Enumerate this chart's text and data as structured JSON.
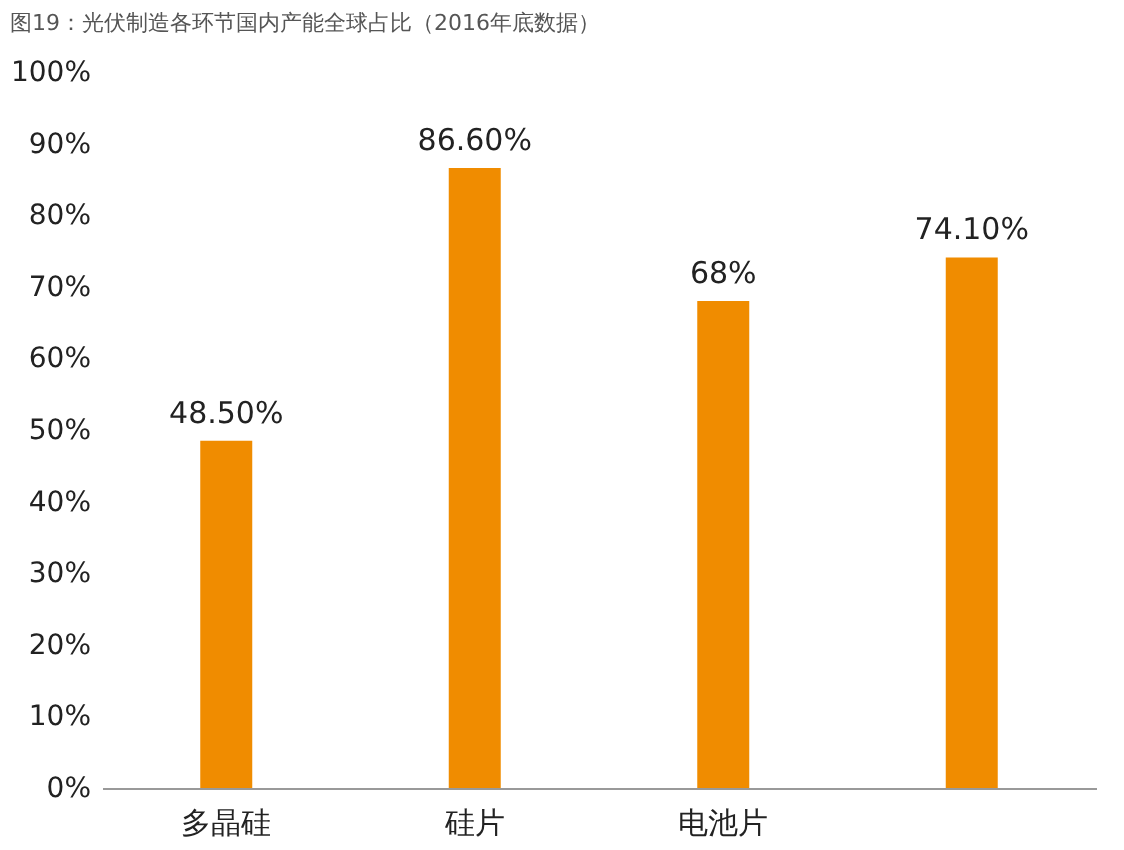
{
  "chart_data": {
    "type": "bar",
    "title": "图19：光伏制造各环节国内产能全球占比（2016年底数据）",
    "categories": [
      "多晶硅",
      "硅片",
      "电池片",
      null
    ],
    "values": [
      48.5,
      86.6,
      68,
      74.1
    ],
    "value_labels": [
      "48.50%",
      "86.60%",
      "68%",
      "74.10%"
    ],
    "color": "#f08c00",
    "ylim": [
      0,
      100
    ],
    "yticks": [
      {
        "value": 0,
        "label": "0%"
      },
      {
        "value": 10,
        "label": "10%"
      },
      {
        "value": 20,
        "label": "20%"
      },
      {
        "value": 30,
        "label": "30%"
      },
      {
        "value": 40,
        "label": "40%"
      },
      {
        "value": 50,
        "label": "50%"
      },
      {
        "value": 60,
        "label": "60%"
      },
      {
        "value": 70,
        "label": "70%"
      },
      {
        "value": 80,
        "label": "80%"
      },
      {
        "value": 90,
        "label": "90%"
      },
      {
        "value": 100,
        "label": "100%"
      }
    ],
    "grid": false
  }
}
